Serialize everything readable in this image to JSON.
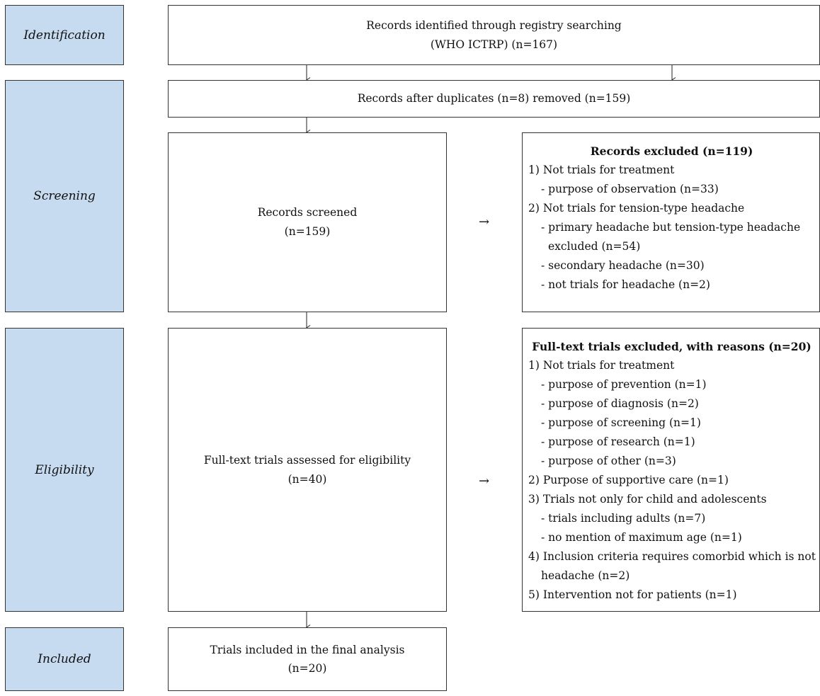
{
  "stages": {
    "identification": "Identification",
    "screening": "Screening",
    "eligibility": "Eligibility",
    "included": "Included"
  },
  "boxes": {
    "identified": [
      "Records identified through registry searching",
      "(WHO ICTRP) (n=167)"
    ],
    "after_duplicates": "Records after duplicates (n=8) removed (n=159)",
    "screened": [
      "Records screened",
      "(n=159)"
    ],
    "full_text": [
      "Full-text trials assessed for eligibility",
      "(n=40)"
    ],
    "included": [
      "Trials included in the final analysis",
      "(n=20)"
    ]
  },
  "records_excluded": {
    "title": "Records excluded (n=119)",
    "items": [
      "1) Not trials for treatment",
      "- purpose of observation (n=33)",
      "2) Not trials for tension-type headache",
      "- primary headache but tension-type headache",
      "excluded (n=54)",
      "- secondary headache (n=30)",
      "- not trials for headache (n=2)"
    ]
  },
  "fulltext_excluded": {
    "title": "Full-text trials excluded, with reasons (n=20)",
    "items": [
      "1) Not trials for treatment",
      "- purpose of prevention (n=1)",
      "- purpose of diagnosis (n=2)",
      "- purpose of screening (n=1)",
      "- purpose of research (n=1)",
      "- purpose of other (n=3)",
      "2) Purpose of supportive care (n=1)",
      "3) Trials not only for child and adolescents",
      "- trials including adults (n=7)",
      "- no mention of maximum age (n=1)",
      "4) Inclusion criteria requires comorbid which is not",
      "headache (n=2)",
      "5) Intervention not for patients (n=1)"
    ]
  },
  "arrows": {
    "right": "→"
  }
}
